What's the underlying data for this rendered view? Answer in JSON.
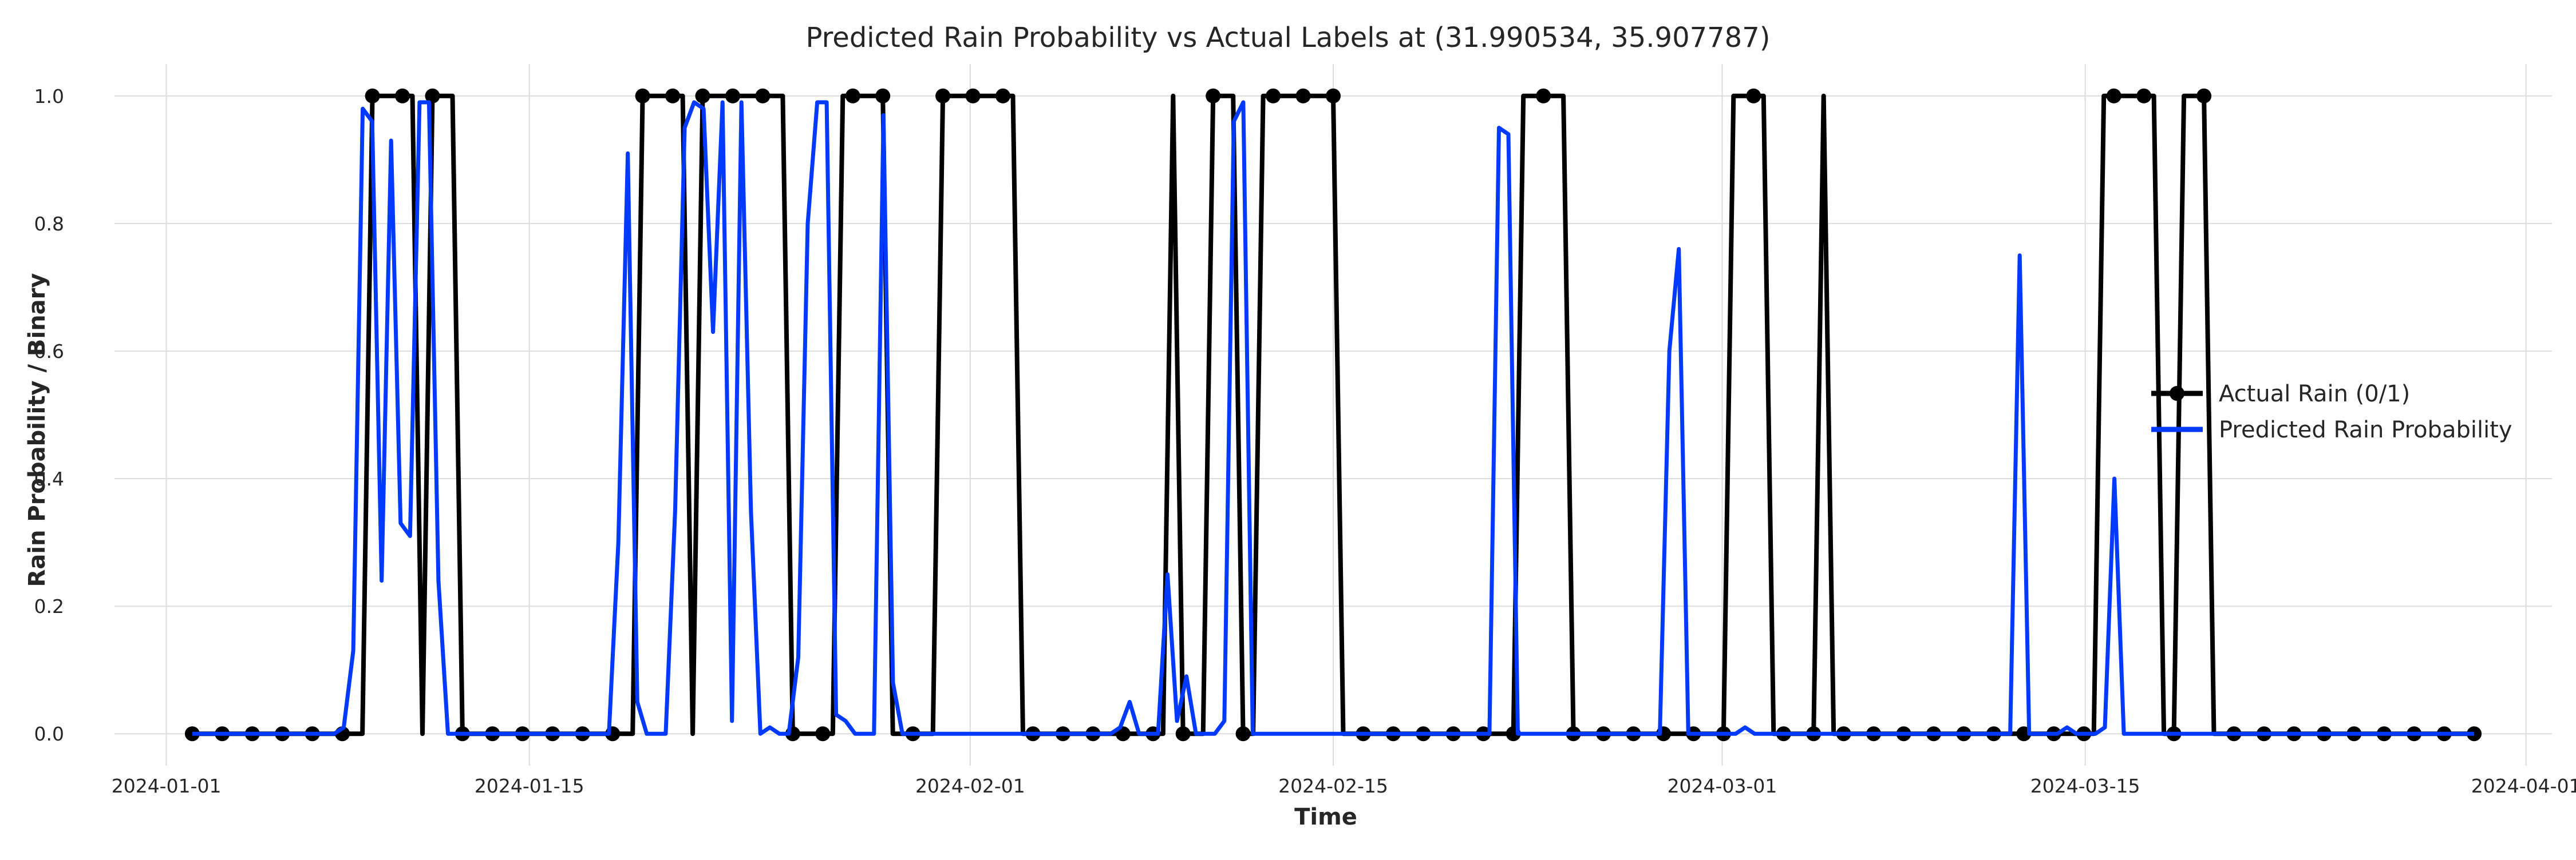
{
  "chart_data": {
    "type": "line",
    "title": "Predicted Rain Probability vs Actual Labels at (31.990534, 35.907787)",
    "xlabel": "Time",
    "ylabel": "Rain Probability / Binary",
    "x_start": "2024-01-02",
    "x_end": "2024-03-30",
    "xlim": [
      "2023-12-30",
      "2024-04-02"
    ],
    "ylim": [
      -0.05,
      1.05
    ],
    "x_ticks": [
      "2024-01-01",
      "2024-01-15",
      "2024-02-01",
      "2024-02-15",
      "2024-03-01",
      "2024-03-15",
      "2024-04-01"
    ],
    "y_ticks": [
      "0.0",
      "0.2",
      "0.4",
      "0.6",
      "0.8",
      "1.0"
    ],
    "grid": true,
    "legend_position": "right",
    "series": [
      {
        "name": "Actual Rain (0/1)",
        "color": "#000000",
        "marker": "circle",
        "values": [
          0,
          0,
          0,
          0,
          0,
          0,
          0,
          0,
          0,
          0,
          0,
          0,
          0,
          0,
          0,
          0,
          0,
          0,
          1,
          1,
          1,
          1,
          1,
          0,
          1,
          1,
          1,
          0,
          0,
          0,
          0,
          0,
          0,
          0,
          0,
          0,
          0,
          0,
          0,
          0,
          0,
          0,
          0,
          0,
          0,
          1,
          1,
          1,
          1,
          1,
          0,
          1,
          1,
          1,
          1,
          1,
          1,
          1,
          1,
          1,
          0,
          0,
          0,
          0,
          0,
          1,
          1,
          1,
          1,
          1,
          0,
          0,
          0,
          0,
          0,
          1,
          1,
          1,
          1,
          1,
          1,
          1,
          1,
          0,
          0,
          0,
          0,
          0,
          0,
          0,
          0,
          0,
          0,
          0,
          0,
          0,
          0,
          0,
          1,
          0,
          0,
          0,
          1,
          1,
          1,
          0,
          0,
          1,
          1,
          1,
          1,
          1,
          1,
          1,
          1,
          0,
          0,
          0,
          0,
          0,
          0,
          0,
          0,
          0,
          0,
          0,
          0,
          0,
          0,
          0,
          0,
          0,
          0,
          1,
          1,
          1,
          1,
          1,
          0,
          0,
          0,
          0,
          0,
          0,
          0,
          0,
          0,
          0,
          0,
          0,
          0,
          0,
          0,
          0,
          1,
          1,
          1,
          1,
          0,
          0,
          0,
          0,
          0,
          1,
          0,
          0,
          0,
          0,
          0,
          0,
          0,
          0,
          0,
          0,
          0,
          0,
          0,
          0,
          0,
          0,
          0,
          0,
          0,
          0,
          0,
          0,
          0,
          0,
          0,
          0,
          0,
          1,
          1,
          1,
          1,
          1,
          1,
          0,
          0,
          1,
          1,
          1,
          0,
          0,
          0,
          0,
          0,
          0,
          0,
          0,
          0,
          0,
          0,
          0,
          0,
          0,
          0,
          0,
          0,
          0,
          0,
          0,
          0,
          0,
          0,
          0,
          0,
          0,
          0
        ]
      },
      {
        "name": "Predicted Rain Probability",
        "color": "#0039ff",
        "marker": "none",
        "values": [
          0,
          0,
          0,
          0,
          0,
          0,
          0,
          0,
          0,
          0,
          0,
          0,
          0,
          0,
          0,
          0,
          0.01,
          0.13,
          0.98,
          0.96,
          0.24,
          0.93,
          0.33,
          0.31,
          0.99,
          0.99,
          0.24,
          0,
          0,
          0,
          0,
          0,
          0,
          0,
          0,
          0,
          0,
          0,
          0,
          0,
          0,
          0,
          0,
          0,
          0,
          0.3,
          0.91,
          0.05,
          0,
          0,
          0,
          0.35,
          0.95,
          0.99,
          0.98,
          0.63,
          0.99,
          0.02,
          0.99,
          0.35,
          0,
          0.01,
          0,
          0,
          0.12,
          0.8,
          0.99,
          0.99,
          0.03,
          0.02,
          0,
          0,
          0,
          0.97,
          0.08,
          0,
          0,
          0,
          0,
          0,
          0,
          0,
          0,
          0,
          0,
          0,
          0,
          0,
          0,
          0,
          0,
          0,
          0,
          0,
          0,
          0,
          0,
          0,
          0.01,
          0.05,
          0,
          0,
          0,
          0.25,
          0.02,
          0.09,
          0,
          0,
          0,
          0.02,
          0.96,
          0.99,
          0,
          0,
          0,
          0,
          0,
          0,
          0,
          0,
          0,
          0,
          0,
          0,
          0,
          0,
          0,
          0,
          0,
          0,
          0,
          0,
          0,
          0,
          0,
          0,
          0,
          0,
          0.95,
          0.94,
          0,
          0,
          0,
          0,
          0,
          0,
          0,
          0,
          0,
          0,
          0,
          0,
          0,
          0,
          0,
          0,
          0.6,
          0.76,
          0,
          0,
          0,
          0,
          0,
          0,
          0.01,
          0,
          0,
          0,
          0,
          0,
          0,
          0,
          0,
          0,
          0,
          0,
          0,
          0,
          0,
          0,
          0,
          0,
          0,
          0,
          0,
          0,
          0,
          0,
          0,
          0,
          0,
          0,
          0,
          0.75,
          0,
          0,
          0,
          0,
          0.01,
          0,
          0,
          0,
          0.01,
          0.4,
          0,
          0,
          0,
          0,
          0,
          0,
          0,
          0,
          0,
          0,
          0,
          0,
          0,
          0,
          0,
          0,
          0,
          0,
          0,
          0,
          0,
          0,
          0,
          0,
          0,
          0,
          0,
          0,
          0,
          0,
          0,
          0,
          0,
          0,
          0,
          0,
          0,
          0
        ]
      }
    ]
  }
}
